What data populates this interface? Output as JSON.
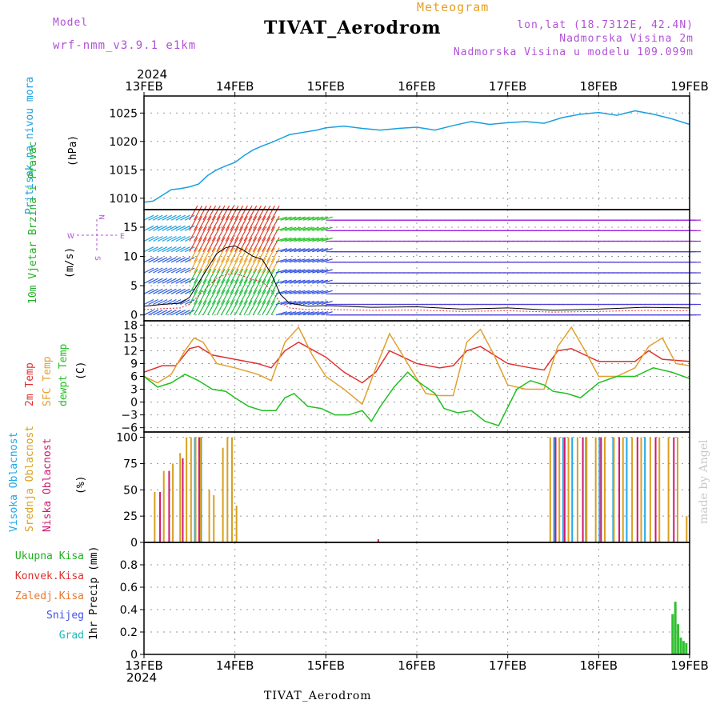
{
  "header": {
    "model_label": "Model",
    "model_value": "wrf-nmm_v3.9.1  e1km",
    "title": "Meteogram",
    "station": "TIVAT_Aerodrom",
    "lonlat": "lon,lat (18.7312E, 42.4N)",
    "elevation": "Nadmorska Visina 2m",
    "model_elevation": "Nadmorska Visina u modelu 109.099m",
    "year_top": "2024",
    "year_bottom": "2024",
    "footer_station": "TIVAT_Aerodrom",
    "credit": "made by Angel"
  },
  "colors": {
    "purple": "#b050d8",
    "orange": "#e8a020",
    "pressure": "#1aa0e0",
    "green_label": "#20b020",
    "red": "#e03030",
    "sfc": "#e0a030",
    "dewpt": "#20c020",
    "cloud_high": "#20a8e8",
    "cloud_mid": "#d8a020",
    "cloud_low": "#d01870"
  },
  "chart_data": [
    {
      "type": "line",
      "title": "Pritisak na nivou mora",
      "ylabel": "(hPa)",
      "x_ticks": [
        "13FEB",
        "14FEB",
        "15FEB",
        "16FEB",
        "17FEB",
        "18FEB",
        "19FEB"
      ],
      "ylim": [
        1008,
        1028
      ],
      "y_ticks": [
        1010,
        1015,
        1020,
        1025
      ],
      "grid": true,
      "series": [
        {
          "name": "Pritisak na nivou mora",
          "x": [
            0,
            0.1,
            0.2,
            0.3,
            0.4,
            0.5,
            0.6,
            0.7,
            0.8,
            0.9,
            1.0,
            1.1,
            1.2,
            1.3,
            1.4,
            1.5,
            1.6,
            1.75,
            1.9,
            2.0,
            2.2,
            2.4,
            2.6,
            2.8,
            3.0,
            3.2,
            3.4,
            3.6,
            3.8,
            4.0,
            4.2,
            4.4,
            4.6,
            4.8,
            5.0,
            5.2,
            5.4,
            5.6,
            5.8,
            6.0
          ],
          "values": [
            1009.3,
            1009.5,
            1010.5,
            1011.5,
            1011.7,
            1012.0,
            1012.5,
            1014.0,
            1015.0,
            1015.7,
            1016.3,
            1017.5,
            1018.5,
            1019.2,
            1019.8,
            1020.5,
            1021.2,
            1021.6,
            1022.0,
            1022.4,
            1022.7,
            1022.3,
            1022.0,
            1022.3,
            1022.5,
            1022.0,
            1022.8,
            1023.5,
            1023.0,
            1023.3,
            1023.5,
            1023.2,
            1024.2,
            1024.8,
            1025.1,
            1024.6,
            1025.4,
            1024.8,
            1024.0,
            1023.0
          ]
        }
      ]
    },
    {
      "type": "line",
      "title": "10m Vjetar Brzina i Pravac",
      "ylabel": "(m/s)",
      "compass": {
        "n": "N",
        "s": "S",
        "e": "E",
        "w": "W"
      },
      "ylim": [
        -1,
        18
      ],
      "y_ticks": [
        0,
        5,
        10,
        15
      ],
      "grid": true,
      "series": [
        {
          "name": "wind speed",
          "x": [
            0,
            0.2,
            0.4,
            0.5,
            0.6,
            0.7,
            0.8,
            0.9,
            1.0,
            1.1,
            1.2,
            1.3,
            1.4,
            1.5,
            1.6,
            1.8,
            2.0,
            2.5,
            3.0,
            3.5,
            4.0,
            4.5,
            5.0,
            5.5,
            6.0
          ],
          "values": [
            1.5,
            1.8,
            2.0,
            3.0,
            5.5,
            8.0,
            10.5,
            11.5,
            11.8,
            11.0,
            10.0,
            9.5,
            7.0,
            3.5,
            2.0,
            1.5,
            1.6,
            1.3,
            1.4,
            1.0,
            1.2,
            0.8,
            1.0,
            1.3,
            1.2
          ]
        }
      ]
    },
    {
      "type": "line",
      "ylabel": "(C)",
      "ylim": [
        -7,
        19
      ],
      "y_ticks": [
        -6,
        -3,
        0,
        3,
        6,
        9,
        12,
        15,
        18
      ],
      "grid": true,
      "series": [
        {
          "name": "2m Temp",
          "x": [
            0,
            0.2,
            0.35,
            0.5,
            0.6,
            0.75,
            1.0,
            1.25,
            1.4,
            1.55,
            1.7,
            2.0,
            2.2,
            2.4,
            2.55,
            2.7,
            3.0,
            3.25,
            3.4,
            3.55,
            3.7,
            4.0,
            4.25,
            4.4,
            4.55,
            4.7,
            5.0,
            5.25,
            5.4,
            5.55,
            5.7,
            6.0
          ],
          "values": [
            7,
            8.5,
            8.5,
            12.5,
            13,
            11,
            10,
            9,
            8,
            12,
            14,
            10.5,
            7,
            4.5,
            7,
            12,
            9,
            8,
            8.5,
            12,
            13,
            9,
            8,
            7.5,
            12,
            12.5,
            9.5,
            9.5,
            9.5,
            12,
            10,
            9.5
          ]
        },
        {
          "name": "SFC Temp",
          "x": [
            0,
            0.15,
            0.3,
            0.45,
            0.55,
            0.65,
            0.8,
            1.0,
            1.25,
            1.4,
            1.55,
            1.7,
            1.85,
            2.0,
            2.2,
            2.4,
            2.55,
            2.7,
            2.9,
            3.1,
            3.25,
            3.4,
            3.55,
            3.7,
            3.85,
            4.0,
            4.2,
            4.4,
            4.55,
            4.7,
            4.85,
            5.0,
            5.2,
            5.4,
            5.55,
            5.7,
            5.85,
            6.0
          ],
          "values": [
            6,
            4.5,
            6.5,
            12,
            15,
            14,
            9,
            8,
            6.5,
            5,
            14,
            17.5,
            11,
            6,
            3,
            -0.5,
            8,
            16,
            9,
            2,
            1.5,
            1.5,
            14,
            17,
            11,
            4,
            3,
            3,
            13,
            17.5,
            12,
            6,
            6,
            8,
            13,
            15,
            9,
            8.5
          ]
        },
        {
          "name": "dewpt Temp",
          "x": [
            0,
            0.15,
            0.3,
            0.45,
            0.6,
            0.75,
            0.9,
            1.0,
            1.15,
            1.3,
            1.45,
            1.55,
            1.65,
            1.8,
            1.95,
            2.1,
            2.25,
            2.4,
            2.5,
            2.6,
            2.75,
            2.9,
            3.0,
            3.2,
            3.3,
            3.45,
            3.6,
            3.75,
            3.9,
            4.1,
            4.25,
            4.4,
            4.5,
            4.65,
            4.8,
            5.0,
            5.2,
            5.4,
            5.6,
            5.8,
            6.0
          ],
          "values": [
            6,
            3.5,
            4.5,
            6.5,
            5,
            3,
            2.5,
            1,
            -1,
            -2,
            -2,
            1,
            2,
            -1,
            -1.5,
            -3,
            -3,
            -2,
            -4.5,
            -1,
            3.5,
            7,
            5,
            2,
            -1.5,
            -2.5,
            -2,
            -4.5,
            -5.5,
            3,
            5,
            4,
            2.5,
            2,
            1,
            4.5,
            6,
            6,
            8,
            7,
            5.5
          ]
        }
      ]
    },
    {
      "type": "bar",
      "ylabel": "(%)",
      "ylim": [
        0,
        105
      ],
      "y_ticks": [
        0,
        25,
        50,
        75,
        100
      ],
      "grid": true,
      "series": [
        {
          "name": "Visoka Oblacnost",
          "x": [
            0.55,
            0.6,
            0.62,
            4.5,
            4.6,
            4.7,
            4.85,
            5.0,
            5.15,
            5.3,
            5.5
          ],
          "values": [
            100,
            100,
            100,
            100,
            100,
            100,
            100,
            100,
            100,
            100,
            100
          ]
        },
        {
          "name": "Srednja Oblacnost",
          "x": [
            0.1,
            0.2,
            0.3,
            0.38,
            0.45,
            0.5,
            0.55,
            0.6,
            0.7,
            0.75,
            0.85,
            0.9,
            0.95,
            1.0,
            4.45,
            4.55,
            4.65,
            4.75,
            4.85,
            4.95,
            5.05,
            5.15,
            5.25,
            5.35,
            5.45,
            5.55,
            5.65,
            5.75,
            5.85,
            5.95
          ],
          "values": [
            48,
            68,
            75,
            85,
            100,
            100,
            100,
            100,
            50,
            45,
            90,
            100,
            100,
            35,
            100,
            100,
            100,
            100,
            100,
            100,
            100,
            100,
            100,
            100,
            100,
            100,
            100,
            100,
            100,
            25
          ]
        },
        {
          "name": "Niska Oblacnost",
          "x": [
            0.15,
            0.25,
            0.4,
            0.58,
            2.55,
            4.5,
            4.6,
            4.8,
            5.0,
            5.2,
            5.4,
            5.6,
            5.8
          ],
          "values": [
            48,
            68,
            80,
            100,
            3,
            100,
            100,
            100,
            100,
            100,
            100,
            100,
            100
          ]
        }
      ]
    },
    {
      "type": "bar",
      "ylabel": "1hr Precip (mm)",
      "ylim": [
        0,
        1.0
      ],
      "y_ticks": [
        0,
        0.2,
        0.4,
        0.6,
        0.8
      ],
      "x_ticks": [
        "13FEB",
        "14FEB",
        "15FEB",
        "16FEB",
        "17FEB",
        "18FEB",
        "19FEB"
      ],
      "grid": true,
      "legend": [
        "Ukupna Kisa",
        "Konvek.Kisa",
        "Zaledj.Kisa",
        "Snijeg",
        "Grad"
      ],
      "series": [
        {
          "name": "Ukupna Kisa",
          "x": [
            5.8,
            5.83,
            5.86,
            5.89,
            5.92,
            5.95
          ],
          "values": [
            0.36,
            0.47,
            0.27,
            0.15,
            0.12,
            0.1
          ]
        }
      ]
    }
  ]
}
